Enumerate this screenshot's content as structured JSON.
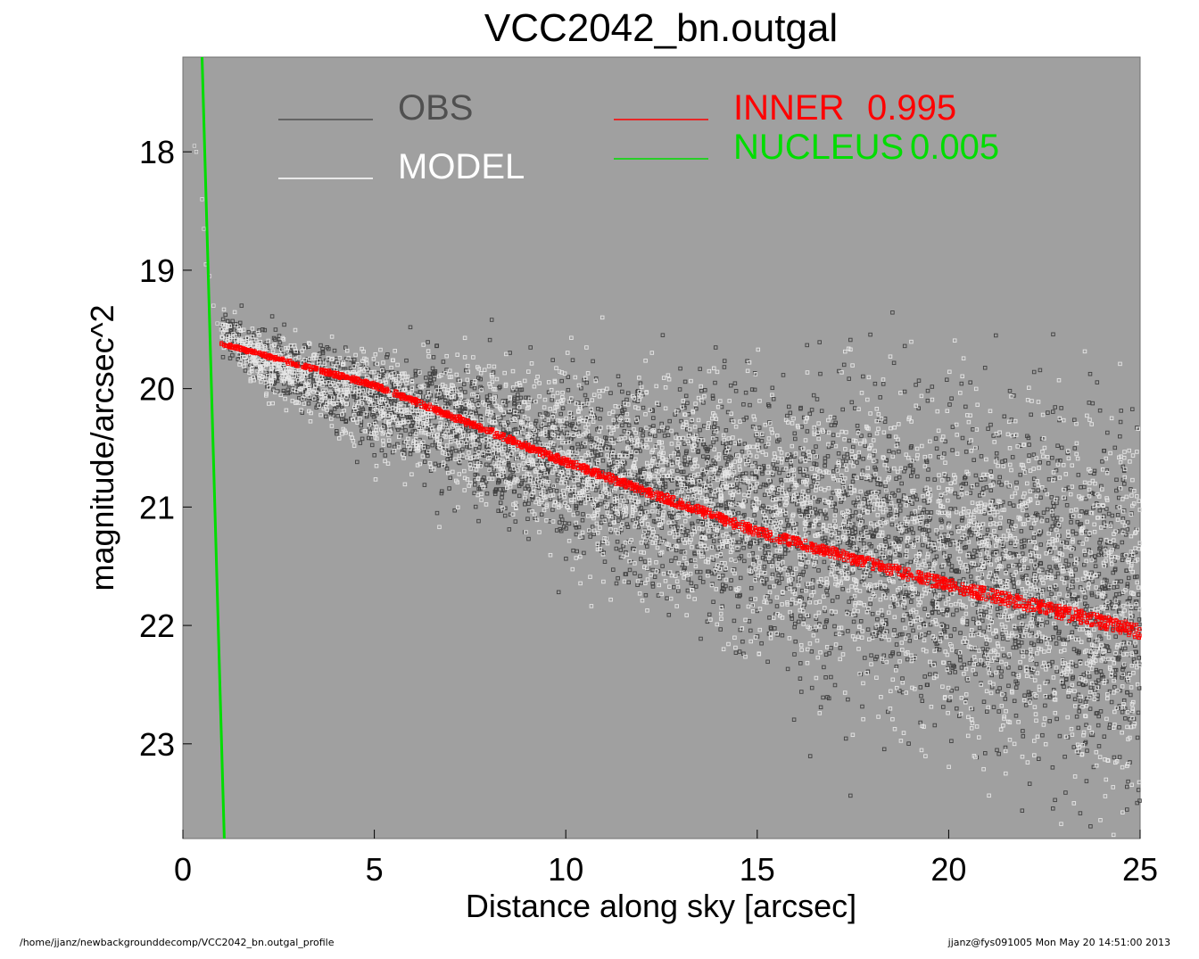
{
  "chart_data": {
    "type": "scatter",
    "title": "VCC2042_bn.outgal",
    "xlabel": "Distance along sky [arcsec]",
    "ylabel": "magnitude/arcsec^2",
    "xlim": [
      0,
      25
    ],
    "ylim": [
      23.8,
      17.2
    ],
    "y_inverted": true,
    "xticks": [
      "0",
      "5",
      "10",
      "15",
      "20",
      "25"
    ],
    "yticks": [
      "18",
      "19",
      "20",
      "21",
      "22",
      "23"
    ],
    "background_color": "#a0a0a0",
    "grid": false,
    "series": [
      {
        "name": "OBS",
        "kind": "scatter",
        "color": "#404040",
        "trend": {
          "x": [
            0.3,
            0.5,
            1.0,
            2.0,
            5.0,
            10.0,
            15.0,
            20.0,
            25.0
          ],
          "y": [
            17.95,
            18.5,
            19.5,
            19.75,
            20.1,
            20.6,
            21.05,
            21.5,
            21.9
          ]
        },
        "scatter_sigma_at_x": {
          "x": [
            1,
            5,
            10,
            15,
            20,
            25
          ],
          "sigma": [
            0.08,
            0.2,
            0.35,
            0.5,
            0.65,
            0.75
          ]
        },
        "approx_points": 4200
      },
      {
        "name": "MODEL",
        "kind": "scatter",
        "color": "#e6e6e6",
        "trend": {
          "x": [
            0.3,
            0.5,
            1.0,
            2.0,
            5.0,
            10.0,
            15.0,
            20.0,
            25.0
          ],
          "y": [
            17.95,
            18.5,
            19.5,
            19.75,
            20.1,
            20.6,
            21.05,
            21.5,
            21.9
          ]
        },
        "scatter_sigma_at_x": {
          "x": [
            1,
            5,
            10,
            15,
            20,
            25
          ],
          "sigma": [
            0.08,
            0.2,
            0.35,
            0.5,
            0.65,
            0.75
          ]
        },
        "approx_points": 4200
      },
      {
        "name": "INNER",
        "legend_value": "0.995",
        "kind": "band",
        "color": "#ff0000",
        "x": [
          1.0,
          5.0,
          10.0,
          15.0,
          20.0,
          25.0
        ],
        "y": [
          19.62,
          19.97,
          20.62,
          21.21,
          21.66,
          22.05
        ]
      },
      {
        "name": "NUCLEUS",
        "legend_value": "0.005",
        "kind": "line",
        "color": "#00dd00",
        "x": [
          0.5,
          1.08
        ],
        "y": [
          17.2,
          23.8
        ]
      }
    ],
    "legend": [
      {
        "label": "OBS",
        "color": "#505050"
      },
      {
        "label": "MODEL",
        "color": "#ffffff"
      },
      {
        "label": "INNER",
        "value": "0.995",
        "color": "#ff0000"
      },
      {
        "label": "NUCLEUS",
        "value": "0.005",
        "color": "#00dd00"
      }
    ],
    "legend_placement": "top"
  },
  "footer": {
    "path": "/home/jjanz/newbackgrounddecomp/VCC2042_bn.outgal_profile",
    "stamp": "jjanz@fys091005  Mon May 20 14:51:00 2013"
  }
}
